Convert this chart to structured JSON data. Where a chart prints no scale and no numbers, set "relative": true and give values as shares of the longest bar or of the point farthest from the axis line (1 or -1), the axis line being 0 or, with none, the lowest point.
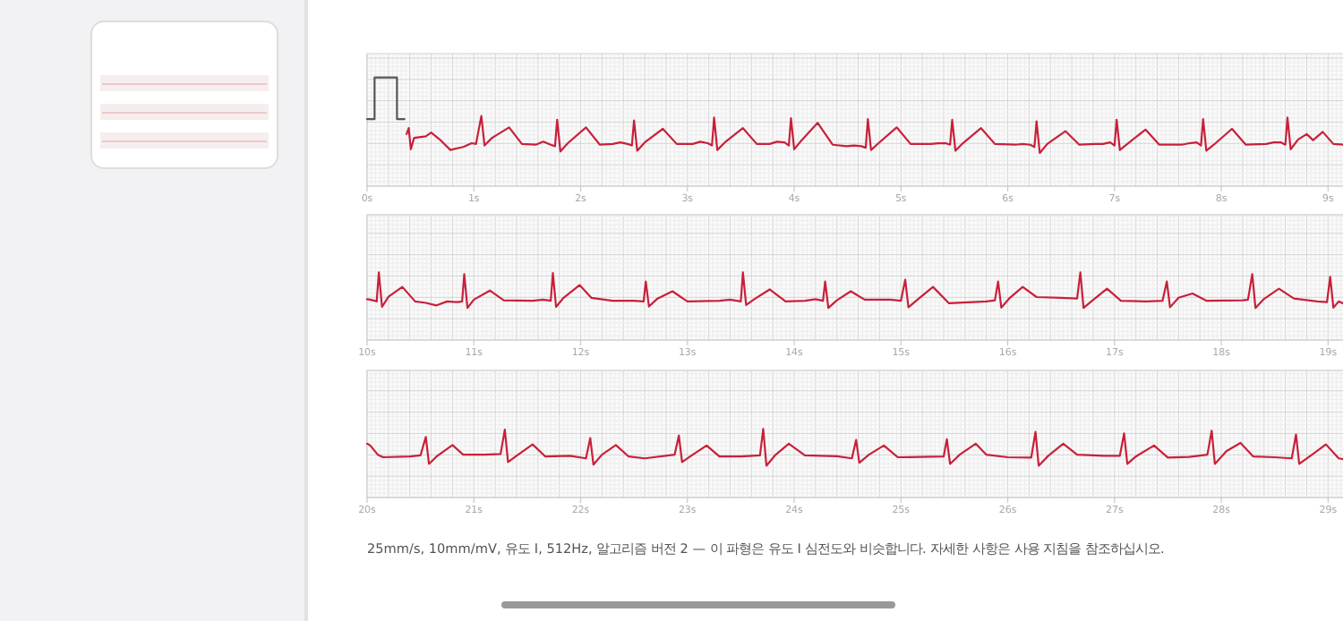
{
  "chart_data": [
    {
      "type": "line",
      "relative": true,
      "grid": true,
      "tick_labels": "x",
      "xlim": [
        0,
        9.14
      ],
      "xticks": [
        {
          "value": 0,
          "label": "0s"
        },
        {
          "value": 1,
          "label": "1s"
        },
        {
          "value": 2,
          "label": "2s"
        },
        {
          "value": 3,
          "label": "3s"
        },
        {
          "value": 4,
          "label": "4s"
        },
        {
          "value": 5,
          "label": "5s"
        },
        {
          "value": 6,
          "label": "6s"
        },
        {
          "value": 7,
          "label": "7s"
        },
        {
          "value": 8,
          "label": "8s"
        },
        {
          "value": 9,
          "label": "9s"
        }
      ],
      "series": [
        {
          "color": "#555555",
          "x": [
            0,
            0.07,
            0.07,
            0.28,
            0.28,
            0.35
          ],
          "values": [
            0.45,
            0.45,
            1.0,
            1.0,
            0.45,
            0.45
          ]
        },
        {
          "color": "#c8203a",
          "x": [
            0.37,
            0.39,
            0.41,
            0.44,
            0.55,
            0.6,
            0.68,
            0.78,
            0.9,
            0.98,
            1.02,
            1.07,
            1.1,
            1.17,
            1.33,
            1.45,
            1.58,
            1.65,
            1.72,
            1.76,
            1.78,
            1.81,
            1.88,
            2.05,
            2.18,
            2.3,
            2.37,
            2.44,
            2.48,
            2.5,
            2.53,
            2.6,
            2.77,
            2.9,
            3.05,
            3.12,
            3.19,
            3.23,
            3.25,
            3.28,
            3.35,
            3.52,
            3.65,
            3.77,
            3.84,
            3.91,
            3.95,
            3.97,
            4.0,
            4.07,
            4.22,
            4.36,
            4.49,
            4.56,
            4.63,
            4.67,
            4.69,
            4.72,
            4.79,
            4.96,
            5.09,
            5.28,
            5.35,
            5.42,
            5.46,
            5.48,
            5.51,
            5.58,
            5.75,
            5.88,
            6.07,
            6.14,
            6.21,
            6.25,
            6.27,
            6.3,
            6.37,
            6.54,
            6.67,
            6.82,
            6.89,
            6.96,
            7.0,
            7.02,
            7.05,
            7.12,
            7.29,
            7.42,
            7.63,
            7.7,
            7.77,
            7.81,
            7.83,
            7.86,
            7.93,
            8.1,
            8.23,
            8.42,
            8.49,
            8.56,
            8.6,
            8.62,
            8.65,
            8.72,
            8.8,
            8.86,
            8.95,
            9.05,
            9.14
          ],
          "values": [
            0.25,
            0.33,
            0.05,
            0.2,
            0.22,
            0.27,
            0.18,
            0.04,
            0.08,
            0.13,
            0.12,
            0.49,
            0.1,
            0.2,
            0.34,
            0.12,
            0.11,
            0.15,
            0.11,
            0.09,
            0.44,
            0.02,
            0.13,
            0.34,
            0.11,
            0.12,
            0.14,
            0.12,
            0.1,
            0.43,
            0.03,
            0.14,
            0.32,
            0.12,
            0.12,
            0.15,
            0.13,
            0.1,
            0.47,
            0.04,
            0.14,
            0.33,
            0.12,
            0.12,
            0.15,
            0.14,
            0.1,
            0.46,
            0.05,
            0.17,
            0.4,
            0.11,
            0.09,
            0.1,
            0.09,
            0.07,
            0.45,
            0.04,
            0.13,
            0.34,
            0.12,
            0.12,
            0.13,
            0.13,
            0.11,
            0.44,
            0.03,
            0.13,
            0.33,
            0.12,
            0.11,
            0.12,
            0.11,
            0.08,
            0.42,
            0.0,
            0.12,
            0.29,
            0.11,
            0.12,
            0.12,
            0.14,
            0.1,
            0.44,
            0.04,
            0.12,
            0.31,
            0.11,
            0.11,
            0.13,
            0.14,
            0.1,
            0.45,
            0.03,
            0.11,
            0.32,
            0.11,
            0.12,
            0.14,
            0.14,
            0.11,
            0.47,
            0.05,
            0.18,
            0.25,
            0.17,
            0.28,
            0.12,
            0.11
          ]
        }
      ]
    },
    {
      "type": "line",
      "relative": true,
      "grid": true,
      "tick_labels": "x",
      "xlim": [
        10,
        19.14
      ],
      "xticks": [
        {
          "value": 10,
          "label": "10s"
        },
        {
          "value": 11,
          "label": "11s"
        },
        {
          "value": 12,
          "label": "12s"
        },
        {
          "value": 13,
          "label": "13s"
        },
        {
          "value": 14,
          "label": "14s"
        },
        {
          "value": 15,
          "label": "15s"
        },
        {
          "value": 16,
          "label": "16s"
        },
        {
          "value": 17,
          "label": "17s"
        },
        {
          "value": 18,
          "label": "18s"
        },
        {
          "value": 19,
          "label": "19s"
        }
      ],
      "series": [
        {
          "color": "#c8203a",
          "x": [
            10.0,
            10.03,
            10.07,
            10.09,
            10.11,
            10.14,
            10.2,
            10.33,
            10.45,
            10.55,
            10.65,
            10.75,
            10.85,
            10.89,
            10.91,
            10.94,
            11.0,
            11.15,
            11.28,
            11.55,
            11.65,
            11.72,
            11.74,
            11.77,
            11.84,
            11.99,
            12.1,
            12.3,
            12.5,
            12.59,
            12.61,
            12.64,
            12.72,
            12.86,
            13.0,
            13.3,
            13.4,
            13.5,
            13.52,
            13.55,
            13.62,
            13.77,
            13.92,
            14.1,
            14.2,
            14.27,
            14.29,
            14.32,
            14.4,
            14.53,
            14.66,
            14.9,
            15.0,
            15.04,
            15.07,
            15.16,
            15.3,
            15.45,
            15.8,
            15.88,
            15.91,
            15.94,
            16.02,
            16.14,
            16.27,
            16.5,
            16.65,
            16.68,
            16.71,
            16.79,
            16.93,
            17.06,
            17.3,
            17.45,
            17.49,
            17.52,
            17.6,
            17.73,
            17.86,
            18.2,
            18.25,
            18.29,
            18.32,
            18.4,
            18.54,
            18.68,
            18.9,
            18.99,
            19.02,
            19.05,
            19.1,
            19.14
          ],
          "values": [
            0.26,
            0.25,
            0.22,
            0.2,
            1.0,
            0.05,
            0.33,
            0.6,
            0.2,
            0.16,
            0.09,
            0.2,
            0.18,
            0.2,
            0.95,
            0.02,
            0.25,
            0.5,
            0.23,
            0.22,
            0.25,
            0.22,
            0.98,
            0.05,
            0.3,
            0.65,
            0.3,
            0.22,
            0.22,
            0.2,
            0.75,
            0.06,
            0.28,
            0.48,
            0.2,
            0.22,
            0.25,
            0.2,
            1.0,
            0.1,
            0.25,
            0.53,
            0.2,
            0.22,
            0.26,
            0.22,
            0.75,
            0.02,
            0.23,
            0.48,
            0.25,
            0.25,
            0.22,
            0.8,
            0.04,
            0.26,
            0.6,
            0.15,
            0.2,
            0.23,
            0.75,
            0.03,
            0.3,
            0.6,
            0.32,
            0.3,
            0.28,
            1.0,
            0.02,
            0.22,
            0.55,
            0.22,
            0.2,
            0.22,
            0.75,
            0.04,
            0.3,
            0.42,
            0.22,
            0.23,
            0.25,
            0.95,
            0.02,
            0.27,
            0.55,
            0.28,
            0.2,
            0.18,
            0.88,
            0.03,
            0.2,
            0.15
          ]
        }
      ]
    },
    {
      "type": "line",
      "relative": true,
      "grid": true,
      "tick_labels": "x",
      "xlim": [
        20,
        29.14
      ],
      "xticks": [
        {
          "value": 20,
          "label": "20s"
        },
        {
          "value": 21,
          "label": "21s"
        },
        {
          "value": 22,
          "label": "22s"
        },
        {
          "value": 23,
          "label": "23s"
        },
        {
          "value": 24,
          "label": "24s"
        },
        {
          "value": 25,
          "label": "25s"
        },
        {
          "value": 26,
          "label": "26s"
        },
        {
          "value": 27,
          "label": "27s"
        },
        {
          "value": 28,
          "label": "28s"
        },
        {
          "value": 29,
          "label": "29s"
        }
      ],
      "annotations": [
        "25mm/s, 10mm/mV, 유도 I, 512Hz, 알고리즘 버전 2 — 이 파형은 유도 I 심전도와 비슷합니다. 자세한 사항은 사용 지침을 참조하십시오."
      ],
      "series": [
        {
          "color": "#c8203a",
          "x": [
            20.0,
            20.03,
            20.1,
            20.15,
            20.4,
            20.5,
            20.55,
            20.58,
            20.65,
            20.8,
            20.9,
            21.1,
            21.25,
            21.29,
            21.32,
            21.4,
            21.55,
            21.67,
            21.9,
            22.05,
            22.09,
            22.12,
            22.2,
            22.33,
            22.45,
            22.6,
            22.88,
            22.92,
            22.95,
            23.05,
            23.18,
            23.3,
            23.5,
            23.68,
            23.71,
            23.74,
            23.82,
            23.95,
            24.1,
            24.4,
            24.54,
            24.58,
            24.61,
            24.7,
            24.84,
            24.97,
            25.4,
            25.43,
            25.46,
            25.55,
            25.7,
            25.8,
            26.0,
            26.22,
            26.26,
            26.29,
            26.38,
            26.52,
            26.65,
            26.9,
            27.05,
            27.09,
            27.12,
            27.2,
            27.37,
            27.5,
            27.7,
            27.87,
            27.91,
            27.94,
            28.05,
            28.18,
            28.3,
            28.5,
            28.66,
            28.7,
            28.73,
            28.85,
            28.98,
            29.1,
            29.14
          ],
          "values": [
            0.6,
            0.55,
            0.3,
            0.23,
            0.25,
            0.28,
            0.78,
            0.05,
            0.25,
            0.56,
            0.3,
            0.3,
            0.32,
            0.98,
            0.1,
            0.27,
            0.58,
            0.25,
            0.27,
            0.2,
            0.75,
            0.03,
            0.3,
            0.56,
            0.25,
            0.2,
            0.3,
            0.82,
            0.1,
            0.3,
            0.55,
            0.25,
            0.25,
            0.28,
            1.0,
            0.0,
            0.28,
            0.6,
            0.28,
            0.26,
            0.2,
            0.7,
            0.08,
            0.3,
            0.55,
            0.23,
            0.25,
            0.72,
            0.05,
            0.3,
            0.6,
            0.3,
            0.23,
            0.22,
            0.92,
            0.0,
            0.27,
            0.6,
            0.3,
            0.27,
            0.27,
            0.88,
            0.05,
            0.25,
            0.55,
            0.22,
            0.24,
            0.3,
            0.95,
            0.05,
            0.4,
            0.62,
            0.25,
            0.23,
            0.2,
            0.85,
            0.05,
            0.3,
            0.58,
            0.2,
            0.18
          ]
        }
      ]
    }
  ]
}
